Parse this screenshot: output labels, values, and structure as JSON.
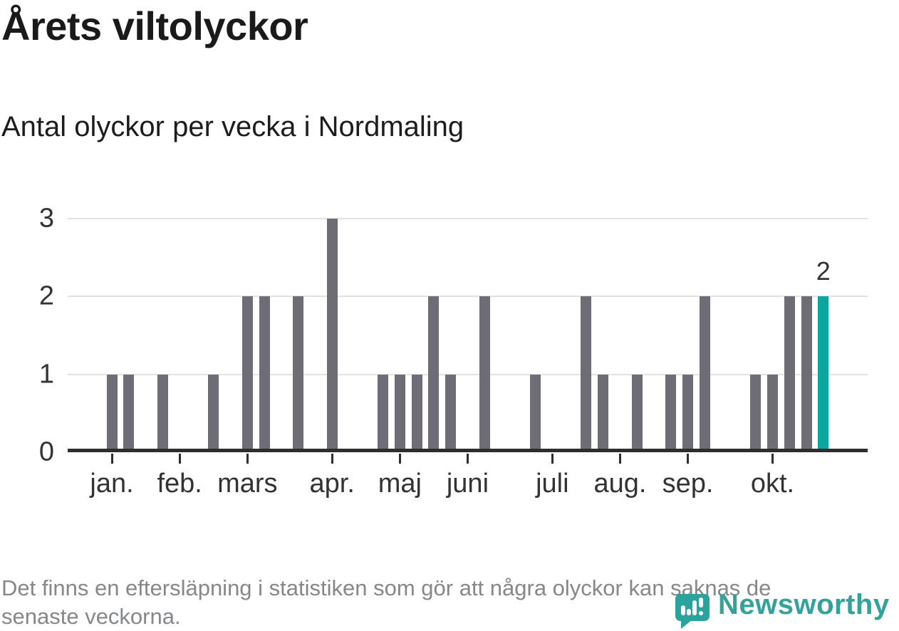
{
  "header": {
    "title": "Årets viltolyckor",
    "subtitle": "Antal olyckor per vecka i Nordmaling"
  },
  "footer": {
    "line1": "Det finns en eftersläpning i statistiken som gör att några olyckor kan saknas de",
    "line2": "senaste veckorna."
  },
  "branding": {
    "name": "Newsworthy",
    "color": "#33a39a"
  },
  "chart_data": {
    "type": "bar",
    "title": "Årets viltolyckor",
    "subtitle": "Antal olyckor per vecka i Nordmaling",
    "xlabel": "",
    "ylabel": "",
    "x_description": "veckor, januari till slutet av oktober (index 0 = första veckan i januari)",
    "values": [
      0,
      0,
      1,
      1,
      0,
      1,
      0,
      0,
      1,
      0,
      2,
      2,
      0,
      2,
      0,
      3,
      0,
      0,
      1,
      1,
      1,
      2,
      1,
      0,
      2,
      0,
      0,
      1,
      0,
      0,
      2,
      1,
      0,
      1,
      0,
      1,
      1,
      2,
      0,
      0,
      1,
      1,
      2,
      2,
      2
    ],
    "ylim": [
      0,
      3
    ],
    "yticks": [
      0,
      1,
      2,
      3
    ],
    "grid": true,
    "legend_position": "none",
    "month_ticks": [
      {
        "label": "jan.",
        "week": 2
      },
      {
        "label": "feb.",
        "week": 6
      },
      {
        "label": "mars",
        "week": 10
      },
      {
        "label": "apr.",
        "week": 15
      },
      {
        "label": "maj",
        "week": 19
      },
      {
        "label": "juni",
        "week": 23
      },
      {
        "label": "juli",
        "week": 28
      },
      {
        "label": "aug.",
        "week": 32
      },
      {
        "label": "sep.",
        "week": 36
      },
      {
        "label": "okt.",
        "week": 41
      }
    ],
    "highlight_week": 44,
    "annotation": {
      "text": "2",
      "week": 44
    },
    "colors": {
      "bar": "#6e6d76",
      "highlight": "#0ba6a0",
      "grid": "#e2e2e2",
      "axis": "#2e2e2e",
      "label": "#333333"
    }
  }
}
